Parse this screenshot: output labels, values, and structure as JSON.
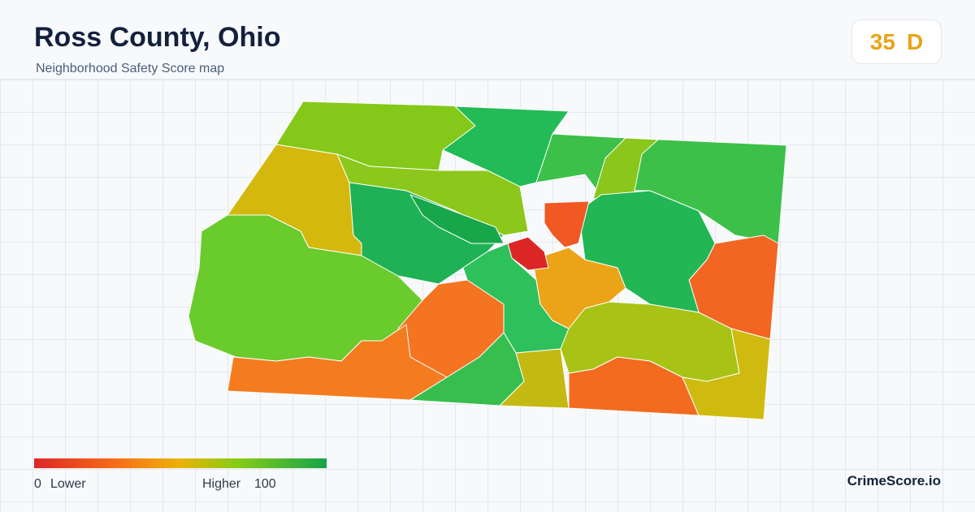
{
  "header": {
    "title": "Ross County, Ohio",
    "subtitle": "Neighborhood Safety Score map"
  },
  "badge": {
    "score": 35,
    "grade": "D"
  },
  "legend": {
    "min": 0,
    "min_label": "Lower",
    "max_label": "Higher",
    "max": 100
  },
  "brand": "CrimeScore.io"
}
